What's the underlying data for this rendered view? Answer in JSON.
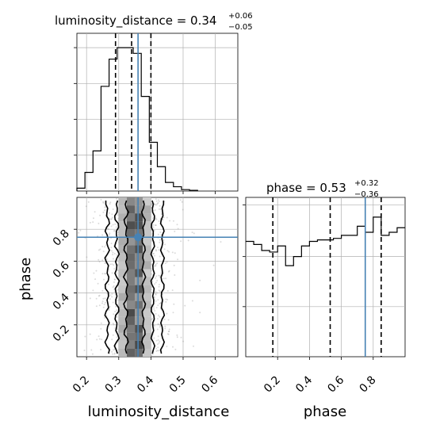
{
  "chart_data": [
    {
      "type": "histogram",
      "panel": "top-left",
      "title": {
        "text": "luminosity_distance = 0.34",
        "upper": "+0.06",
        "lower": "−0.05"
      },
      "xlim": [
        0.17,
        0.67
      ],
      "bin_edges": [
        0.17,
        0.195,
        0.22,
        0.245,
        0.27,
        0.295,
        0.32,
        0.345,
        0.37,
        0.395,
        0.42,
        0.445,
        0.47,
        0.495,
        0.52,
        0.545
      ],
      "counts": [
        0.02,
        0.13,
        0.28,
        0.73,
        0.92,
        1.0,
        1.0,
        0.96,
        0.66,
        0.34,
        0.17,
        0.06,
        0.03,
        0.01,
        0.005
      ],
      "quantiles": [
        0.29,
        0.34,
        0.4
      ],
      "truth": 0.36,
      "grid": true,
      "colors": {
        "line": "#000000",
        "truth": "#4682b4",
        "grid": "#b0b0b0"
      }
    },
    {
      "type": "histogram",
      "panel": "bottom-right",
      "title": {
        "text": "phase = 0.53",
        "upper": "+0.32",
        "lower": "−0.36"
      },
      "xlim": [
        0.0,
        1.0
      ],
      "xticks": [
        "0.2",
        "0.4",
        "0.6",
        "0.8"
      ],
      "bin_edges": [
        0.0,
        0.05,
        0.1,
        0.15,
        0.2,
        0.25,
        0.3,
        0.35,
        0.4,
        0.45,
        0.5,
        0.55,
        0.6,
        0.65,
        0.7,
        0.75,
        0.8,
        0.85,
        0.9,
        0.95,
        1.0
      ],
      "counts": [
        0.76,
        0.74,
        0.7,
        0.69,
        0.73,
        0.6,
        0.66,
        0.73,
        0.76,
        0.77,
        0.77,
        0.78,
        0.8,
        0.8,
        0.86,
        0.82,
        0.92,
        0.8,
        0.82,
        0.85
      ],
      "quantiles": [
        0.17,
        0.53,
        0.85
      ],
      "truth": 0.75,
      "grid": true,
      "colors": {
        "line": "#000000",
        "truth": "#4682b4",
        "grid": "#b0b0b0"
      }
    },
    {
      "type": "scatter",
      "subtype": "2d-density-contour",
      "panel": "bottom-left",
      "xlabel": "luminosity_distance",
      "ylabel": "phase",
      "xlim": [
        0.17,
        0.67
      ],
      "ylim": [
        0.0,
        1.0
      ],
      "xticks": [
        "0.2",
        "0.3",
        "0.4",
        "0.5",
        "0.6"
      ],
      "yticks": [
        "0.2",
        "0.4",
        "0.6",
        "0.8"
      ],
      "truth": {
        "x": 0.36,
        "y": 0.75
      },
      "density_x_center": 0.35,
      "density_x_width": 0.045,
      "contour_levels": 3,
      "grid": true,
      "colors": {
        "contour": "#000000",
        "truth": "#4682b4",
        "points": "#999999",
        "grid": "#b0b0b0"
      }
    }
  ]
}
